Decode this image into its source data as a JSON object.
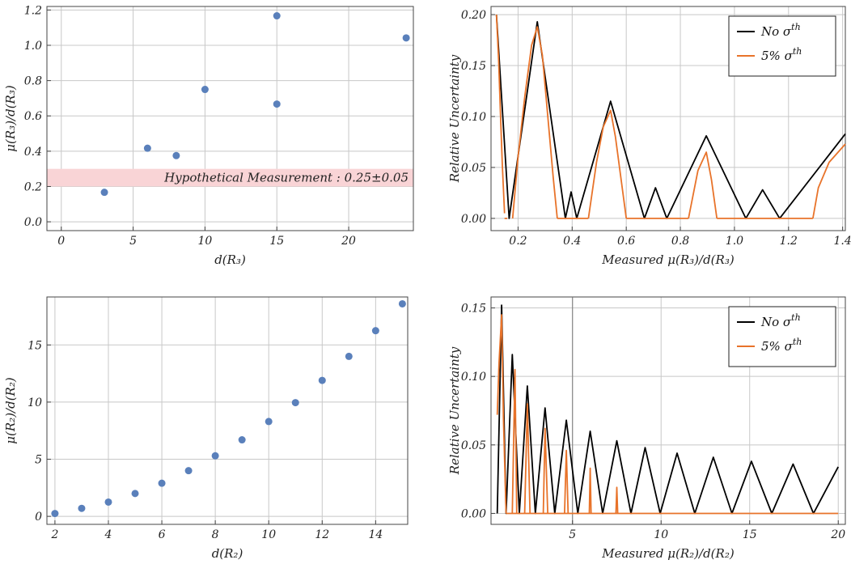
{
  "chart_data": [
    {
      "id": "tl",
      "type": "scatter",
      "xlabel": "d(R₃)",
      "ylabel": "μ(R₃)/d(R₃)",
      "xlim": [
        -1,
        24.5
      ],
      "ylim": [
        -0.05,
        1.22
      ],
      "xticks": [
        0,
        5,
        10,
        15,
        20
      ],
      "xtick_labels": [
        "0",
        "5",
        "10",
        "15",
        "20"
      ],
      "yticks": [
        0,
        0.2,
        0.4,
        0.6,
        0.8,
        1.0,
        1.2
      ],
      "ytick_labels": [
        "0.0",
        "0.2",
        "0.4",
        "0.6",
        "0.8",
        "1.0",
        "1.2"
      ],
      "grid": true,
      "color": "#5a80bb",
      "points": [
        [
          3,
          0.167
        ],
        [
          6,
          0.417
        ],
        [
          8,
          0.375
        ],
        [
          10,
          0.75
        ],
        [
          15,
          0.667
        ],
        [
          15,
          1.167
        ],
        [
          24,
          1.042
        ]
      ],
      "band": {
        "y0": 0.2,
        "y1": 0.3,
        "color": "#f9d4d6"
      },
      "annotation": "Hypothetical Measurement : 0.25±0.05"
    },
    {
      "id": "tr",
      "type": "line",
      "xlabel": "Measured μ(R₃)/d(R₃)",
      "ylabel": "Relative Uncertainty",
      "xlim": [
        0.1,
        1.41
      ],
      "ylim": [
        -0.012,
        0.208
      ],
      "xticks": [
        0.2,
        0.4,
        0.6,
        0.8,
        1.0,
        1.2,
        1.4
      ],
      "xtick_labels": [
        "0.2",
        "0.4",
        "0.6",
        "0.8",
        "1.0",
        "1.2",
        "1.4"
      ],
      "yticks": [
        0,
        0.05,
        0.1,
        0.15,
        0.2
      ],
      "ytick_labels": [
        "0.00",
        "0.05",
        "0.10",
        "0.15",
        "0.20"
      ],
      "grid": true,
      "legend": {
        "position": "top-right",
        "entries": [
          {
            "label": "No σ",
            "sup": "th",
            "color": "#000000"
          },
          {
            "label": "5% σ",
            "sup": "th",
            "color": "#e8732a"
          }
        ]
      },
      "series": [
        {
          "name": "No σ^th",
          "color": "#000000",
          "x": [
            0.12,
            0.167,
            0.271,
            0.375,
            0.396,
            0.417,
            0.542,
            0.667,
            0.708,
            0.75,
            0.896,
            1.042,
            1.104,
            1.167,
            1.41
          ],
          "y": [
            0.2,
            0.0,
            0.193,
            0.0,
            0.026,
            0.0,
            0.115,
            0.0,
            0.03,
            0.0,
            0.081,
            0.0,
            0.028,
            0.0,
            0.083
          ]
        },
        {
          "name": "5% σ^th",
          "color": "#e8732a",
          "segments": [
            {
              "x": [
                0.12,
                0.128,
                0.135,
                0.142,
                0.15
              ],
              "y": [
                0.2,
                0.155,
                0.102,
                0.052,
                0.005
              ]
            },
            {
              "x": [
                0.15,
                0.16
              ],
              "y": [
                0.0,
                0.0
              ]
            },
            {
              "x": [
                0.18,
                0.2,
                0.225,
                0.25,
                0.271,
                0.29,
                0.31,
                0.33,
                0.345
              ],
              "y": [
                0.0,
                0.06,
                0.12,
                0.17,
                0.188,
                0.16,
                0.1,
                0.04,
                0.0
              ]
            },
            {
              "x": [
                0.345,
                0.46
              ],
              "y": [
                0.0,
                0.0
              ]
            },
            {
              "x": [
                0.46,
                0.49,
                0.515,
                0.542,
                0.56,
                0.58,
                0.6
              ],
              "y": [
                0.0,
                0.055,
                0.09,
                0.106,
                0.08,
                0.04,
                0.0
              ]
            },
            {
              "x": [
                0.6,
                0.83
              ],
              "y": [
                0.0,
                0.0
              ]
            },
            {
              "x": [
                0.83,
                0.865,
                0.896,
                0.915,
                0.935
              ],
              "y": [
                0.0,
                0.047,
                0.065,
                0.038,
                0.0
              ]
            },
            {
              "x": [
                0.935,
                1.29
              ],
              "y": [
                0.0,
                0.0
              ]
            },
            {
              "x": [
                1.29,
                1.31,
                1.35,
                1.41
              ],
              "y": [
                0.0,
                0.03,
                0.055,
                0.073
              ]
            }
          ]
        }
      ]
    },
    {
      "id": "bl",
      "type": "scatter",
      "xlabel": "d(R₂)",
      "ylabel": "μ(R₂)/d(R₂)",
      "xlim": [
        1.7,
        15.2
      ],
      "ylim": [
        -0.7,
        19.2
      ],
      "xticks": [
        2,
        4,
        6,
        8,
        10,
        12,
        14
      ],
      "xtick_labels": [
        "2",
        "4",
        "6",
        "8",
        "10",
        "12",
        "14"
      ],
      "yticks": [
        0,
        5,
        10,
        15
      ],
      "ytick_labels": [
        "0",
        "5",
        "10",
        "15"
      ],
      "grid": true,
      "color": "#5a80bb",
      "points": [
        [
          2,
          0.25
        ],
        [
          3,
          0.7
        ],
        [
          4,
          1.25
        ],
        [
          5,
          2.0
        ],
        [
          6,
          2.9
        ],
        [
          7,
          4.0
        ],
        [
          8,
          5.3
        ],
        [
          9,
          6.7
        ],
        [
          10,
          8.3
        ],
        [
          11,
          9.95
        ],
        [
          12,
          11.9
        ],
        [
          13,
          14.0
        ],
        [
          14,
          16.25
        ],
        [
          15,
          18.6
        ]
      ]
    },
    {
      "id": "br",
      "type": "line",
      "xlabel": "Measured μ(R₂)/d(R₂)",
      "ylabel": "Relative Uncertainty",
      "xlim": [
        0.4,
        20.4
      ],
      "ylim": [
        -0.008,
        0.158
      ],
      "xticks": [
        5,
        10,
        15,
        20
      ],
      "xtick_labels": [
        "5",
        "10",
        "15",
        "20"
      ],
      "yticks": [
        0,
        0.05,
        0.1,
        0.15
      ],
      "ytick_labels": [
        "0.00",
        "0.05",
        "0.10",
        "0.15"
      ],
      "grid": true,
      "legend": {
        "position": "top-right",
        "entries": [
          {
            "label": "No σ",
            "sup": "th",
            "color": "#000000"
          },
          {
            "label": "5% σ",
            "sup": "th",
            "color": "#e8732a"
          }
        ]
      },
      "series": [
        {
          "name": "No σ^th",
          "color": "#000000",
          "x": [
            0.75,
            1.0,
            1.25,
            1.6,
            2.0,
            2.45,
            2.9,
            3.45,
            4.0,
            4.65,
            5.3,
            6.0,
            6.7,
            7.5,
            8.3,
            9.1,
            9.95,
            10.9,
            11.9,
            12.95,
            14.0,
            15.1,
            16.25,
            17.45,
            18.6,
            20.0
          ],
          "y": [
            0.0,
            0.152,
            0.0,
            0.116,
            0.0,
            0.093,
            0.0,
            0.077,
            0.0,
            0.068,
            0.0,
            0.06,
            0.0,
            0.053,
            0.0,
            0.048,
            0.0,
            0.044,
            0.0,
            0.041,
            0.0,
            0.038,
            0.0,
            0.036,
            0.0,
            0.034
          ]
        },
        {
          "name": "5% σ^th",
          "color": "#e8732a",
          "segments": [
            {
              "x": [
                0.75,
                0.85,
                1.0,
                1.1,
                1.25
              ],
              "y": [
                0.072,
                0.11,
                0.145,
                0.07,
                0.0
              ]
            },
            {
              "x": [
                1.25,
                20.0
              ],
              "y": [
                0.0,
                0.0
              ]
            },
            {
              "x": [
                1.6,
                1.75,
                1.85
              ],
              "y": [
                0.0,
                0.105,
                0.0
              ]
            },
            {
              "x": [
                2.3,
                2.45,
                2.6
              ],
              "y": [
                0.0,
                0.08,
                0.0
              ]
            },
            {
              "x": [
                3.35,
                3.45,
                3.6
              ],
              "y": [
                0.0,
                0.062,
                0.0
              ]
            },
            {
              "x": [
                4.55,
                4.65,
                4.75
              ],
              "y": [
                0.0,
                0.046,
                0.0
              ]
            },
            {
              "x": [
                5.95,
                6.0,
                6.05
              ],
              "y": [
                0.0,
                0.033,
                0.0
              ]
            },
            {
              "x": [
                7.45,
                7.5,
                7.55
              ],
              "y": [
                0.0,
                0.019,
                0.0
              ]
            }
          ]
        }
      ]
    }
  ]
}
